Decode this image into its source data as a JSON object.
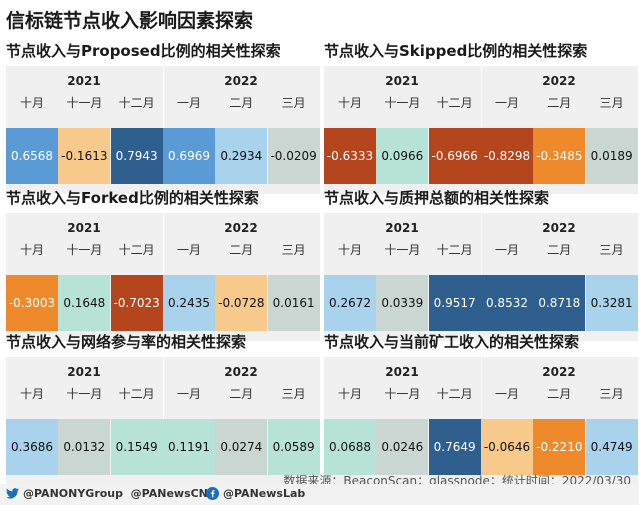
{
  "main_title": "信标链节点收入影响因素探索",
  "years": [
    "2021",
    "2022"
  ],
  "months": [
    "十月",
    "十一月",
    "十二月",
    "一月",
    "二月",
    "三月"
  ],
  "source": "数据来源：BeaconScan；glassnode；统计时间：2022/03/30",
  "footer": {
    "twitter": "@PANONYGroup  @PANewsCN",
    "facebook": "@PANewsLab"
  },
  "chart_data": [
    {
      "type": "heatmap",
      "title": "节点收入与Proposed比例的相关性探索",
      "categories": [
        "十月",
        "十一月",
        "十二月",
        "一月",
        "二月",
        "三月"
      ],
      "values": [
        0.6568,
        -0.1613,
        0.7943,
        0.6969,
        0.2934,
        -0.0209
      ],
      "labels": [
        "0.6568",
        "-0.1613",
        "0.7943",
        "0.6969",
        "0.2934",
        "-0.0209"
      ]
    },
    {
      "type": "heatmap",
      "title": "节点收入与Skipped比例的相关性探索",
      "categories": [
        "十月",
        "十一月",
        "十二月",
        "一月",
        "二月",
        "三月"
      ],
      "values": [
        -0.6333,
        0.0966,
        -0.6966,
        -0.8298,
        -0.3485,
        0.0189
      ],
      "labels": [
        "-0.6333",
        "0.0966",
        "-0.6966",
        "-0.8298",
        "-0.3485",
        "0.0189"
      ]
    },
    {
      "type": "heatmap",
      "title": "节点收入与Forked比例的相关性探索",
      "categories": [
        "十月",
        "十一月",
        "十二月",
        "一月",
        "二月",
        "三月"
      ],
      "values": [
        -0.3003,
        0.1648,
        -0.7023,
        0.2435,
        -0.0728,
        0.0161
      ],
      "labels": [
        "-0.3003",
        "0.1648",
        "-0.7023",
        "0.2435",
        "-0.0728",
        "0.0161"
      ]
    },
    {
      "type": "heatmap",
      "title": "节点收入与质押总额的相关性探索",
      "categories": [
        "十月",
        "十一月",
        "十二月",
        "一月",
        "二月",
        "三月"
      ],
      "values": [
        0.2672,
        0.0339,
        0.9517,
        0.8532,
        0.8718,
        0.3281
      ],
      "labels": [
        "0.2672",
        "0.0339",
        "0.9517",
        "0.8532",
        "0.8718",
        "0.3281"
      ]
    },
    {
      "type": "heatmap",
      "title": "节点收入与网络参与率的相关性探索",
      "categories": [
        "十月",
        "十一月",
        "十二月",
        "一月",
        "二月",
        "三月"
      ],
      "values": [
        0.3686,
        0.0132,
        0.1549,
        0.1191,
        0.0274,
        0.0589
      ],
      "labels": [
        "0.3686",
        "0.0132",
        "0.1549",
        "0.1191",
        "0.0274",
        "0.0589"
      ]
    },
    {
      "type": "heatmap",
      "title": "节点收入与当前矿工收入的相关性探索",
      "categories": [
        "十月",
        "十一月",
        "十二月",
        "一月",
        "二月",
        "三月"
      ],
      "values": [
        0.0688,
        0.0246,
        0.7649,
        -0.0646,
        -0.221,
        0.4749
      ],
      "labels": [
        "0.0688",
        "0.0246",
        "0.7649",
        "-0.0646",
        "-0.2210",
        "0.4749"
      ]
    }
  ],
  "colors": {
    "strong_positive": "#2f5f8f",
    "positive": "#5b9bd5",
    "weak_positive": "#a9d2ec",
    "neutral_low": "#b7e3d7",
    "neutral": "#c9d6d2",
    "weak_negative": "#f7c98a",
    "negative": "#ee8a2c",
    "strong_negative": "#b4451c"
  }
}
